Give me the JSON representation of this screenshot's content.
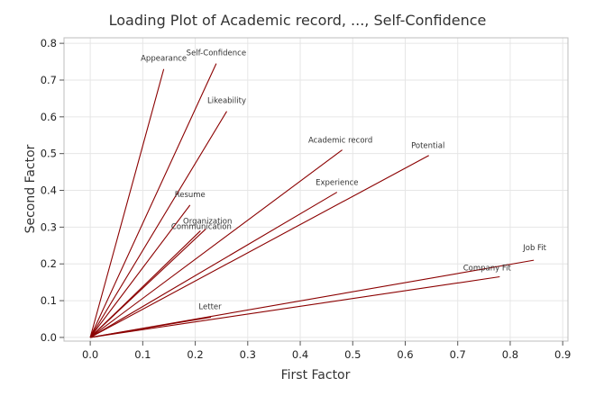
{
  "chart_data": {
    "type": "line",
    "title": "Loading Plot of Academic record, ..., Self-Confidence",
    "xlabel": "First Factor",
    "ylabel": "Second Factor",
    "xlim": [
      -0.05,
      0.91
    ],
    "ylim": [
      -0.01,
      0.815
    ],
    "xticks": [
      "0.0",
      "0.1",
      "0.2",
      "0.3",
      "0.4",
      "0.5",
      "0.6",
      "0.7",
      "0.8",
      "0.9"
    ],
    "yticks": [
      "0.0",
      "0.1",
      "0.2",
      "0.3",
      "0.4",
      "0.5",
      "0.6",
      "0.7",
      "0.8"
    ],
    "grid": true,
    "line_color": "#8b0000",
    "series": [
      {
        "name": "Appearance",
        "x": 0.14,
        "y": 0.73
      },
      {
        "name": "Self-Confidence",
        "x": 0.24,
        "y": 0.745
      },
      {
        "name": "Likeability",
        "x": 0.26,
        "y": 0.615
      },
      {
        "name": "Academic record",
        "x": 0.48,
        "y": 0.51
      },
      {
        "name": "Potential",
        "x": 0.645,
        "y": 0.495
      },
      {
        "name": "Experience",
        "x": 0.47,
        "y": 0.395
      },
      {
        "name": "Resume",
        "x": 0.19,
        "y": 0.36
      },
      {
        "name": "Organization",
        "x": 0.22,
        "y": 0.295
      },
      {
        "name": "Communication",
        "x": 0.21,
        "y": 0.29
      },
      {
        "name": "Job Fit",
        "x": 0.845,
        "y": 0.21
      },
      {
        "name": "Company Fit",
        "x": 0.78,
        "y": 0.165
      },
      {
        "name": "Letter",
        "x": 0.23,
        "y": 0.055
      }
    ]
  }
}
